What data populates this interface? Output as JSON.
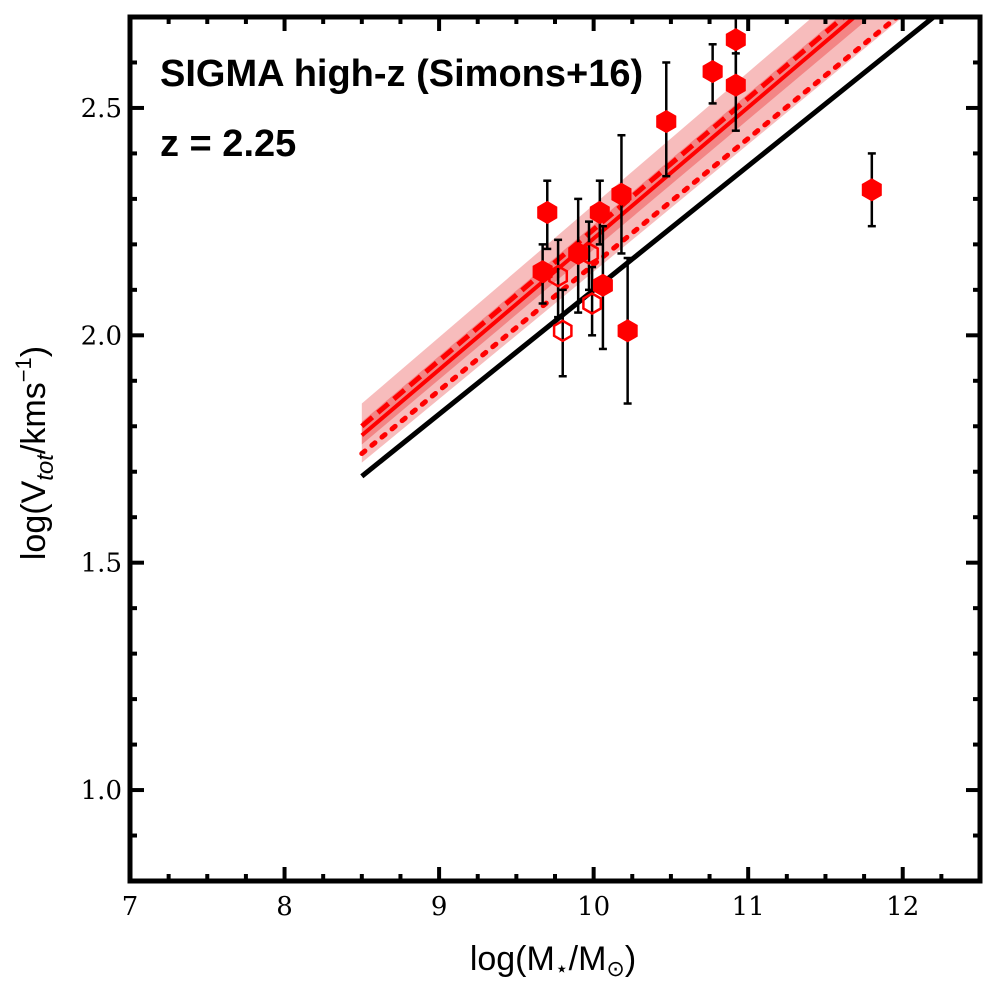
{
  "chart_data": {
    "type": "scatter",
    "title": "",
    "annotations": [
      "SIGMA high-z (Simons+16)",
      "z = 2.25"
    ],
    "xlabel_main": "log(M",
    "xlabel_sub1": "⋆",
    "xlabel_mid": "/M",
    "xlabel_sub2": "⊙",
    "xlabel_end": ")",
    "ylabel_main": "log(V",
    "ylabel_sub": "tot",
    "ylabel_mid": "/kms",
    "ylabel_sup": "−1",
    "ylabel_end": ")",
    "xlim": [
      7,
      12.5
    ],
    "ylim": [
      0.8,
      2.7
    ],
    "xticks": [
      7,
      8,
      9,
      10,
      11,
      12
    ],
    "xtick_labels": [
      "7",
      "8",
      "9",
      "10",
      "11",
      "12"
    ],
    "yticks": [
      1.0,
      1.5,
      2.0,
      2.5
    ],
    "ytick_labels": [
      "1.0",
      "1.5",
      "2.0",
      "2.5"
    ],
    "grid": false,
    "colors": {
      "points": "#ff0000",
      "reference_line": "#000000",
      "fit_line": "#ff0000",
      "band_outer": "#f4a0a0",
      "band_inner": "#f06060",
      "errorbar": "#000000"
    },
    "lines": [
      {
        "style": "solid",
        "color": "#000000",
        "x": [
          8.5,
          12.2
        ],
        "y": [
          1.69,
          2.7
        ]
      },
      {
        "style": "solid",
        "color": "#ff0000",
        "x": [
          8.5,
          12.0
        ],
        "y": [
          1.78,
          2.79
        ]
      },
      {
        "style": "dashed",
        "color": "#ff0000",
        "x": [
          8.5,
          12.0
        ],
        "y": [
          1.8,
          2.81
        ]
      },
      {
        "style": "dotted",
        "color": "#ff0000",
        "x": [
          8.5,
          12.0
        ],
        "y": [
          1.74,
          2.71
        ]
      }
    ],
    "bands": [
      {
        "name": "outer",
        "x": [
          8.5,
          12.0
        ],
        "y_low": [
          1.72,
          2.7
        ],
        "y_high": [
          1.85,
          2.87
        ]
      },
      {
        "name": "inner",
        "x": [
          8.5,
          12.0
        ],
        "y_low": [
          1.76,
          2.76
        ],
        "y_high": [
          1.81,
          2.82
        ]
      }
    ],
    "series": [
      {
        "marker": "filled-hexagon",
        "points": [
          {
            "x": 9.67,
            "y": 2.14,
            "ylo": 2.07,
            "yhi": 2.2
          },
          {
            "x": 9.7,
            "y": 2.27,
            "ylo": 2.19,
            "yhi": 2.34
          },
          {
            "x": 9.9,
            "y": 2.18,
            "ylo": 2.05,
            "yhi": 2.3
          },
          {
            "x": 10.04,
            "y": 2.27,
            "ylo": 2.2,
            "yhi": 2.34
          },
          {
            "x": 10.06,
            "y": 2.11,
            "ylo": 1.97,
            "yhi": 2.24
          },
          {
            "x": 10.18,
            "y": 2.31,
            "ylo": 2.18,
            "yhi": 2.44
          },
          {
            "x": 10.22,
            "y": 2.01,
            "ylo": 1.85,
            "yhi": 2.17
          },
          {
            "x": 10.47,
            "y": 2.47,
            "ylo": 2.35,
            "yhi": 2.6
          },
          {
            "x": 10.77,
            "y": 2.58,
            "ylo": 2.51,
            "yhi": 2.64
          },
          {
            "x": 10.92,
            "y": 2.65,
            "ylo": 2.56,
            "yhi": 2.75
          },
          {
            "x": 10.92,
            "y": 2.55,
            "ylo": 2.45,
            "yhi": 2.62
          },
          {
            "x": 11.8,
            "y": 2.32,
            "ylo": 2.24,
            "yhi": 2.4
          }
        ]
      },
      {
        "marker": "open-hexagon",
        "points": [
          {
            "x": 9.77,
            "y": 2.13,
            "ylo": 2.04,
            "yhi": 2.21
          },
          {
            "x": 9.8,
            "y": 2.01,
            "ylo": 1.91,
            "yhi": 2.1
          },
          {
            "x": 9.97,
            "y": 2.18,
            "ylo": 2.1,
            "yhi": 2.25
          },
          {
            "x": 9.99,
            "y": 2.07,
            "ylo": 2.0,
            "yhi": 2.15
          }
        ]
      }
    ]
  }
}
